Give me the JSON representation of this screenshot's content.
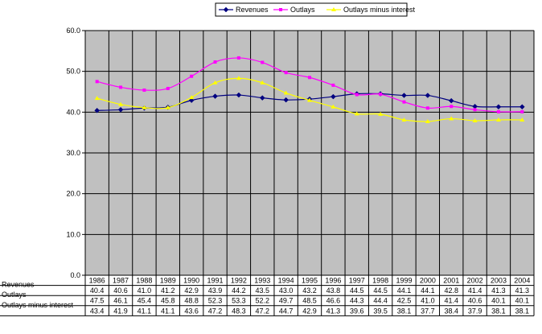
{
  "chart_data": {
    "type": "line",
    "title": "",
    "xlabel": "",
    "ylabel": "",
    "ylim": [
      0,
      60
    ],
    "y_ticks": [
      "0.0",
      "10.0",
      "20.0",
      "30.0",
      "40.0",
      "50.0",
      "60.0"
    ],
    "grid": true,
    "legend_position": "top-center",
    "plot_background": "#c0c0c0",
    "categories": [
      "1986",
      "1987",
      "1988",
      "1989",
      "1990",
      "1991",
      "1992",
      "1993",
      "1994",
      "1995",
      "1996",
      "1997",
      "1998",
      "1999",
      "2000",
      "2001",
      "2002",
      "2003",
      "2004"
    ],
    "series": [
      {
        "name": "Revenues",
        "color": "#000080",
        "marker": "diamond",
        "values": [
          40.4,
          40.6,
          41.0,
          41.2,
          42.9,
          43.9,
          44.2,
          43.5,
          43.0,
          43.2,
          43.8,
          44.5,
          44.5,
          44.1,
          44.1,
          42.8,
          41.4,
          41.3,
          41.3
        ],
        "labels": [
          "40.4",
          "40.6",
          "41.0",
          "41.2",
          "42.9",
          "43.9",
          "44.2",
          "43.5",
          "43.0",
          "43.2",
          "43.8",
          "44.5",
          "44.5",
          "44.1",
          "44.1",
          "42.8",
          "41.4",
          "41.3",
          "41.3"
        ]
      },
      {
        "name": "Outlays",
        "color": "#ff00ff",
        "marker": "square",
        "values": [
          47.5,
          46.1,
          45.4,
          45.8,
          48.8,
          52.3,
          53.3,
          52.2,
          49.7,
          48.5,
          46.6,
          44.3,
          44.4,
          42.5,
          41.0,
          41.4,
          40.6,
          40.1,
          40.1
        ],
        "labels": [
          "47.5",
          "46.1",
          "45.4",
          "45.8",
          "48.8",
          "52.3",
          "53.3",
          "52.2",
          "49.7",
          "48.5",
          "46.6",
          "44.3",
          "44.4",
          "42.5",
          "41.0",
          "41.4",
          "40.6",
          "40.1",
          "40.1"
        ]
      },
      {
        "name": "Outlays minus interest",
        "color": "#ffff00",
        "marker": "triangle",
        "values": [
          43.4,
          41.9,
          41.1,
          41.1,
          43.6,
          47.2,
          48.3,
          47.2,
          44.7,
          42.9,
          41.3,
          39.6,
          39.5,
          38.1,
          37.7,
          38.4,
          37.9,
          38.1,
          38.1
        ],
        "labels": [
          "43.4",
          "41.9",
          "41.1",
          "41.1",
          "43.6",
          "47.2",
          "48.3",
          "47.2",
          "44.7",
          "42.9",
          "41.3",
          "39.6",
          "39.5",
          "38.1",
          "37.7",
          "38.4",
          "37.9",
          "38.1",
          "38.1"
        ]
      }
    ]
  }
}
